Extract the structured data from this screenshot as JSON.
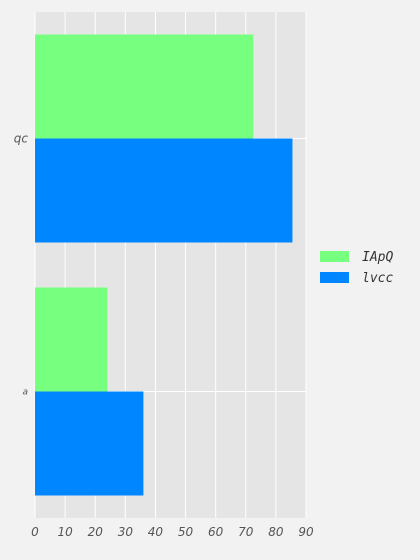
{
  "chart_data": {
    "type": "bar",
    "orientation": "horizontal",
    "categories": [
      "qc",
      "a"
    ],
    "series": [
      {
        "name": "IApQ",
        "values": [
          72.5,
          24
        ],
        "color": "#77ff7f"
      },
      {
        "name": "lvcc",
        "values": [
          85.5,
          36
        ],
        "color": "#0087ff"
      }
    ],
    "xlim": [
      0,
      90
    ],
    "x_ticks": [
      "0",
      "10",
      "20",
      "30",
      "40",
      "50",
      "60",
      "70",
      "80",
      "90"
    ],
    "grid": true,
    "legend_position": "right",
    "title": "",
    "xlabel": "",
    "ylabel": ""
  },
  "colors": {
    "background": "#f2f2f2",
    "plot_background": "#e5e5e5",
    "grid": "#ffffff"
  }
}
